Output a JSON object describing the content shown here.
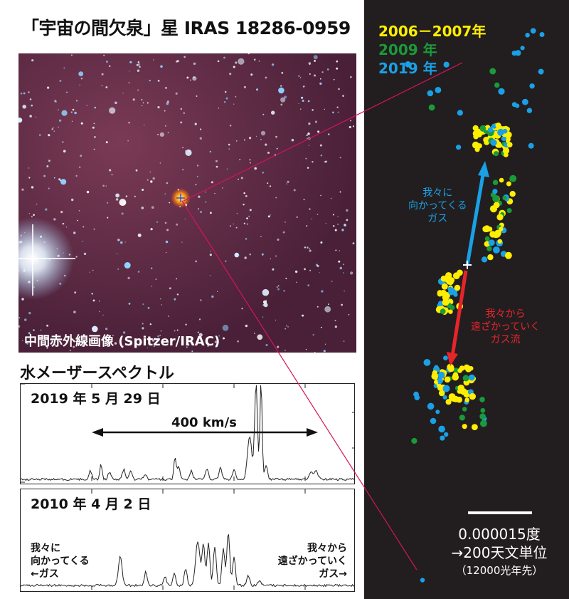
{
  "title": "「宇宙の間欠泉」星 IRAS 18286-0959",
  "ir_image": {
    "caption": "中間赤外線画像 (Spitzer/IRAC)",
    "background": "#5a2a45"
  },
  "spectrum": {
    "heading": "水メーザースペクトル",
    "panel_2019": {
      "date": "2019 年 5 月 29 日",
      "span_label": "400 km/s"
    },
    "panel_2010": {
      "date": "2010 年 4 月 2 日",
      "left_label_1": "我々に",
      "left_label_2": "向かってくる",
      "left_label_3": "←ガス",
      "right_label_1": "我々から",
      "right_label_2": "遠ざかっていく",
      "right_label_3": "ガス→"
    }
  },
  "map": {
    "background": "#221e1f",
    "legend": [
      {
        "label": "2006－2007年",
        "color": "#ffee00"
      },
      {
        "label": "2009 年",
        "color": "#1a9a3a"
      },
      {
        "label": "2019 年",
        "color": "#1aa0e6"
      }
    ],
    "approach_label_1": "我々に",
    "approach_label_2": "向かってくる",
    "approach_label_3": "ガス",
    "recede_label_1": "我々から",
    "recede_label_2": "遠ざかっていく",
    "recede_label_3": "ガス流",
    "approach_color": "#1aa0e6",
    "recede_color": "#e8242b",
    "scale_line_1": "0.000015度",
    "scale_line_2": "→200天文単位",
    "scale_line_3": "（12000光年先）"
  },
  "connector_color": "#d4145a"
}
